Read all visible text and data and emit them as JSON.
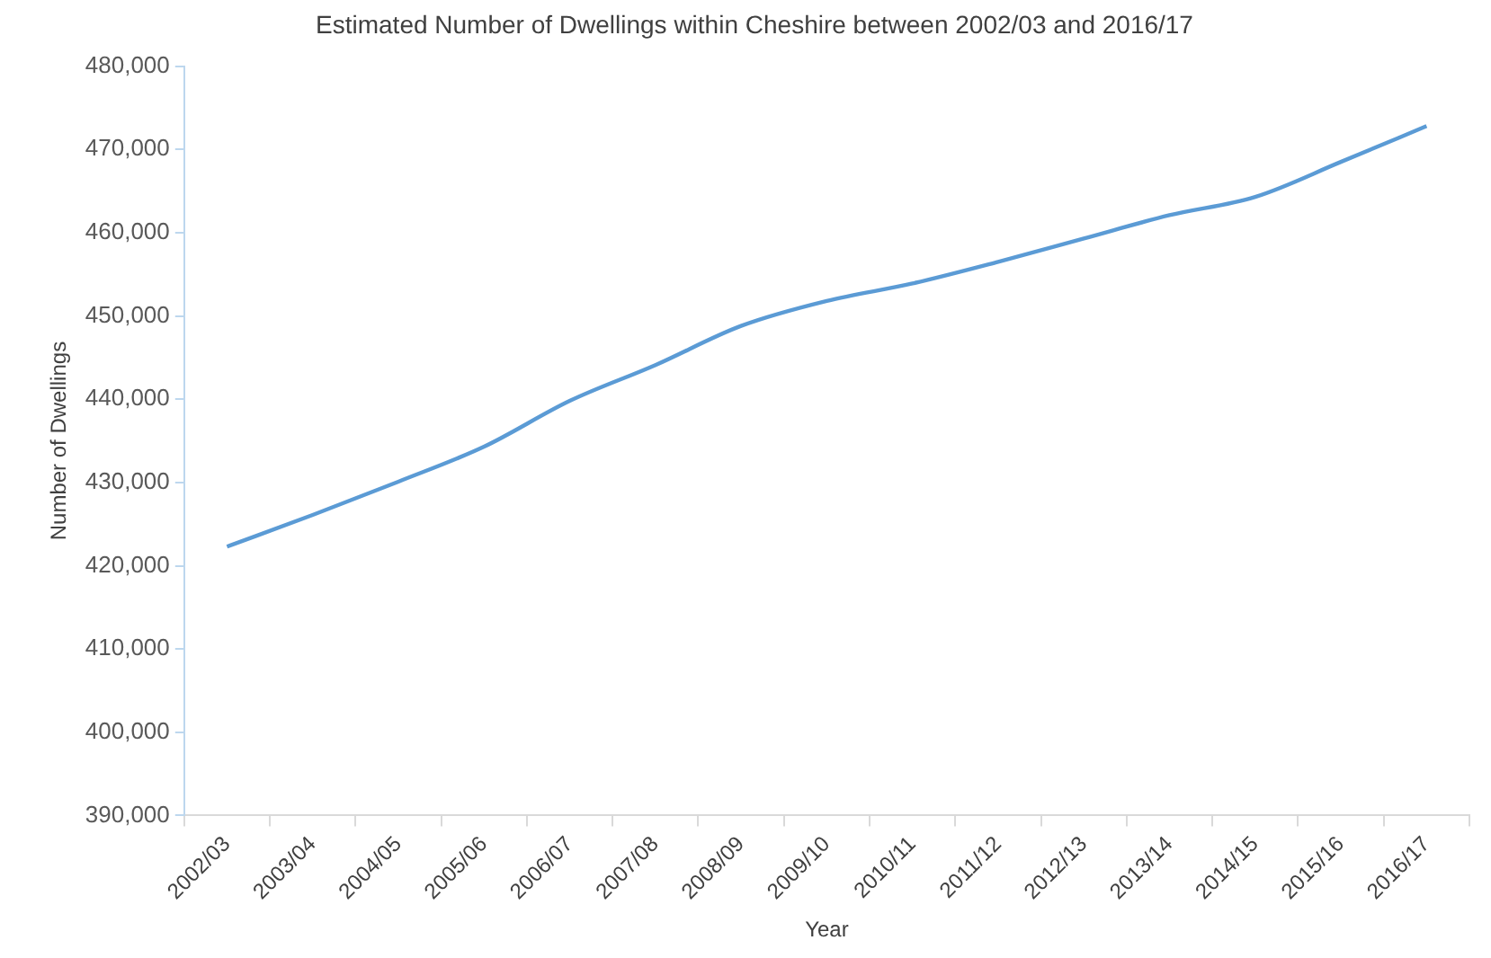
{
  "chart_data": {
    "type": "line",
    "title": "Estimated Number of Dwellings within Cheshire between 2002/03 and 2016/17",
    "xlabel": "Year",
    "ylabel": "Number of Dwellings",
    "categories": [
      "2002/03",
      "2003/04",
      "2004/05",
      "2005/06",
      "2006/07",
      "2007/08",
      "2008/09",
      "2009/10",
      "2010/11",
      "2011/12",
      "2012/13",
      "2013/14",
      "2014/15",
      "2015/16",
      "2016/17"
    ],
    "series": [
      {
        "color": "#5b9bd5",
        "values": [
          422300,
          426100,
          430100,
          434300,
          439800,
          444100,
          448800,
          451800,
          453900,
          456500,
          459300,
          462100,
          464300,
          468500,
          472800
        ]
      }
    ],
    "ylim": [
      390000,
      480000
    ],
    "yticks": [
      {
        "value": 390000,
        "label": "390,000"
      },
      {
        "value": 400000,
        "label": "400,000"
      },
      {
        "value": 410000,
        "label": "410,000"
      },
      {
        "value": 420000,
        "label": "420,000"
      },
      {
        "value": 430000,
        "label": "430,000"
      },
      {
        "value": 440000,
        "label": "440,000"
      },
      {
        "value": 450000,
        "label": "450,000"
      },
      {
        "value": 460000,
        "label": "460,000"
      },
      {
        "value": 470000,
        "label": "470,000"
      },
      {
        "value": 480000,
        "label": "480,000"
      }
    ],
    "grid": false,
    "legend": false,
    "marker": "none",
    "line_style": "solid"
  }
}
